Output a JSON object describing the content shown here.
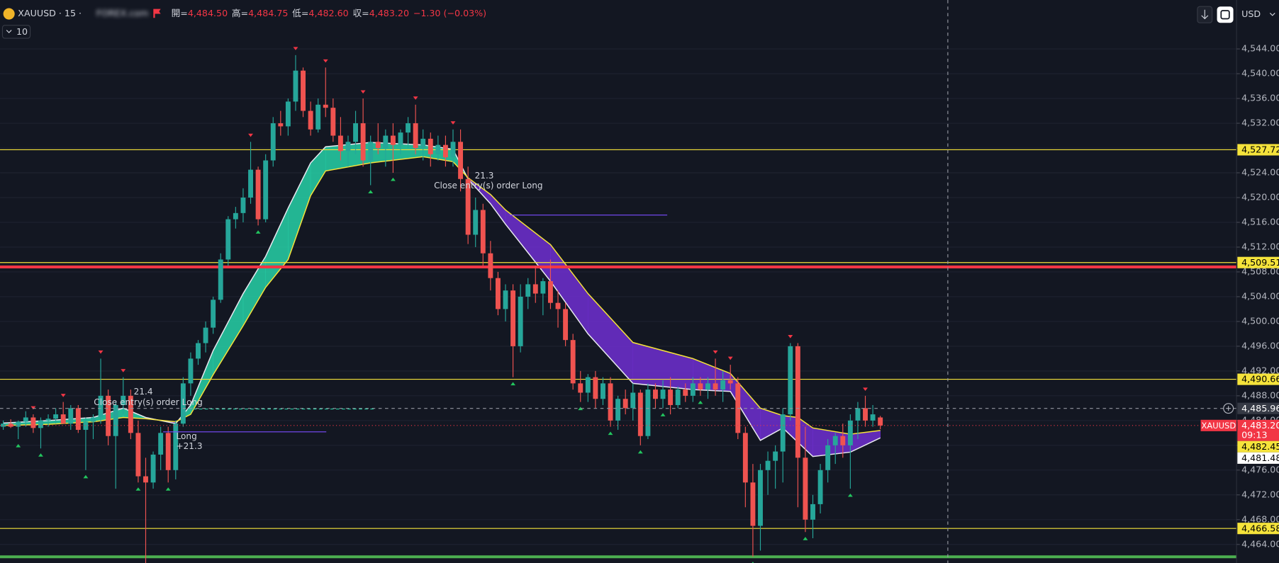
{
  "header": {
    "symbol": "XAUUSD · 15 · ",
    "broker": "FOREX.com",
    "ohlc": [
      {
        "label": "開=",
        "value": "4,484.50"
      },
      {
        "label": "高=",
        "value": "4,484.75"
      },
      {
        "label": "低=",
        "value": "4,482.60"
      },
      {
        "label": "収=",
        "value": "4,483.20"
      }
    ],
    "change": "−1.30 (−0.03%)",
    "interval_badge": "10",
    "currency": "USD"
  },
  "chart_data": {
    "type": "candlestick",
    "up_color": "#26a69a",
    "down_color": "#ef5350",
    "candles": [
      [
        4483.0,
        4484.0,
        4482.5,
        4483.5
      ],
      [
        4483.5,
        4484.2,
        4482.8,
        4483.0
      ],
      [
        4483.0,
        4484.0,
        4481.0,
        4483.8
      ],
      [
        4483.8,
        4485.5,
        4483.0,
        4484.5
      ],
      [
        4484.5,
        4485.0,
        4482.0,
        4482.8
      ],
      [
        4482.8,
        4484.5,
        4479.5,
        4484.0
      ],
      [
        4484.0,
        4485.0,
        4483.0,
        4484.3
      ],
      [
        4484.3,
        4486.0,
        4483.5,
        4485.0
      ],
      [
        4485.0,
        4487.0,
        4484.0,
        4483.5
      ],
      [
        4483.5,
        4486.5,
        4482.5,
        4486.0
      ],
      [
        4486.0,
        4486.5,
        4482.0,
        4482.5
      ],
      [
        4482.5,
        4484.5,
        4476.0,
        4483.8
      ],
      [
        4483.8,
        4485.0,
        4481.0,
        4484.5
      ],
      [
        4484.5,
        4494.0,
        4483.5,
        4488.0
      ],
      [
        4488.0,
        4489.0,
        4480.0,
        4481.5
      ],
      [
        4481.5,
        4487.0,
        4473.0,
        4486.5
      ],
      [
        4486.5,
        4491.0,
        4485.0,
        4488.0
      ],
      [
        4488.0,
        4489.0,
        4481.0,
        4482.0
      ],
      [
        4482.0,
        4484.0,
        4474.0,
        4475.0
      ],
      [
        4475.0,
        4478.0,
        4461.0,
        4474.0
      ],
      [
        4474.0,
        4479.0,
        4473.0,
        4478.5
      ],
      [
        4478.5,
        4483.0,
        4476.0,
        4482.0
      ],
      [
        4482.0,
        4483.0,
        4474.0,
        4476.0
      ],
      [
        4476.0,
        4484.0,
        4474.5,
        4483.5
      ],
      [
        4483.5,
        4491.0,
        4483.0,
        4490.0
      ],
      [
        4490.0,
        4495.0,
        4488.0,
        4494.0
      ],
      [
        4494.0,
        4497.0,
        4493.0,
        4496.5
      ],
      [
        4496.5,
        4500.0,
        4495.0,
        4499.0
      ],
      [
        4499.0,
        4504.0,
        4498.0,
        4503.5
      ],
      [
        4503.5,
        4511.0,
        4503.0,
        4510.0
      ],
      [
        4510.0,
        4517.0,
        4509.0,
        4516.5
      ],
      [
        4516.5,
        4518.5,
        4515.0,
        4517.5
      ],
      [
        4517.5,
        4521.5,
        4516.0,
        4520.0
      ],
      [
        4520.0,
        4529.0,
        4519.0,
        4524.5
      ],
      [
        4524.5,
        4525.0,
        4515.5,
        4516.5
      ],
      [
        4516.5,
        4527.0,
        4516.0,
        4526.0
      ],
      [
        4526.0,
        4533.0,
        4525.0,
        4532.0
      ],
      [
        4532.0,
        4534.0,
        4530.0,
        4531.5
      ],
      [
        4531.5,
        4536.0,
        4530.0,
        4535.5
      ],
      [
        4535.5,
        4543.0,
        4534.0,
        4540.5
      ],
      [
        4540.5,
        4541.0,
        4533.0,
        4534.0
      ],
      [
        4534.0,
        4535.5,
        4530.0,
        4531.0
      ],
      [
        4531.0,
        4536.0,
        4530.5,
        4535.0
      ],
      [
        4535.0,
        4541.0,
        4533.0,
        4534.5
      ],
      [
        4534.5,
        4536.0,
        4529.0,
        4530.0
      ],
      [
        4530.0,
        4533.0,
        4526.0,
        4527.5
      ],
      [
        4527.5,
        4530.0,
        4525.0,
        4529.0
      ],
      [
        4529.0,
        4534.0,
        4527.0,
        4532.0
      ],
      [
        4532.0,
        4536.0,
        4525.0,
        4526.0
      ],
      [
        4526.0,
        4530.0,
        4522.0,
        4529.0
      ],
      [
        4529.0,
        4532.0,
        4527.0,
        4528.0
      ],
      [
        4528.0,
        4531.0,
        4525.0,
        4530.0
      ],
      [
        4530.0,
        4532.0,
        4524.0,
        4528.5
      ],
      [
        4528.5,
        4531.0,
        4527.0,
        4530.5
      ],
      [
        4530.5,
        4533.0,
        4528.0,
        4532.0
      ],
      [
        4532.0,
        4535.0,
        4527.0,
        4528.0
      ],
      [
        4528.0,
        4531.0,
        4526.0,
        4529.5
      ],
      [
        4529.5,
        4530.5,
        4525.0,
        4527.0
      ],
      [
        4527.0,
        4530.0,
        4526.0,
        4528.5
      ],
      [
        4528.5,
        4530.0,
        4525.0,
        4526.5
      ],
      [
        4526.5,
        4531.0,
        4525.0,
        4529.0
      ],
      [
        4529.0,
        4531.0,
        4521.0,
        4523.0
      ],
      [
        4523.0,
        4525.0,
        4512.5,
        4514.0
      ],
      [
        4514.0,
        4520.0,
        4512.0,
        4518.0
      ],
      [
        4518.0,
        4519.0,
        4509.0,
        4511.0
      ],
      [
        4511.0,
        4513.0,
        4505.0,
        4507.0
      ],
      [
        4507.0,
        4508.0,
        4501.0,
        4502.0
      ],
      [
        4502.0,
        4506.0,
        4500.0,
        4505.0
      ],
      [
        4505.0,
        4506.0,
        4491.0,
        4496.0
      ],
      [
        4496.0,
        4506.0,
        4495.0,
        4504.0
      ],
      [
        4504.0,
        4507.0,
        4502.0,
        4506.0
      ],
      [
        4506.0,
        4509.0,
        4503.0,
        4504.5
      ],
      [
        4504.5,
        4507.0,
        4501.0,
        4506.5
      ],
      [
        4506.5,
        4510.0,
        4502.0,
        4503.0
      ],
      [
        4503.0,
        4505.0,
        4499.0,
        4502.0
      ],
      [
        4502.0,
        4503.0,
        4496.0,
        4497.0
      ],
      [
        4497.0,
        4498.0,
        4489.0,
        4490.0
      ],
      [
        4490.0,
        4492.0,
        4487.0,
        4488.5
      ],
      [
        4488.5,
        4491.5,
        4487.0,
        4491.0
      ],
      [
        4491.0,
        4492.0,
        4486.0,
        4487.5
      ],
      [
        4487.5,
        4491.0,
        4486.5,
        4490.0
      ],
      [
        4490.0,
        4491.0,
        4483.0,
        4484.0
      ],
      [
        4484.0,
        4488.0,
        4482.5,
        4487.5
      ],
      [
        4487.5,
        4489.0,
        4485.0,
        4486.0
      ],
      [
        4486.0,
        4490.0,
        4484.0,
        4488.5
      ],
      [
        4488.5,
        4489.0,
        4480.0,
        4481.5
      ],
      [
        4481.5,
        4490.0,
        4481.0,
        4489.0
      ],
      [
        4489.0,
        4490.0,
        4486.0,
        4487.5
      ],
      [
        4487.5,
        4490.5,
        4486.0,
        4489.0
      ],
      [
        4489.0,
        4491.0,
        4485.0,
        4486.5
      ],
      [
        4486.5,
        4489.5,
        4486.0,
        4489.0
      ],
      [
        4489.0,
        4490.0,
        4487.0,
        4488.0
      ],
      [
        4488.0,
        4491.0,
        4487.0,
        4490.0
      ],
      [
        4490.0,
        4491.0,
        4488.0,
        4489.0
      ],
      [
        4489.0,
        4491.0,
        4487.5,
        4490.0
      ],
      [
        4490.0,
        4494.0,
        4488.0,
        4489.0
      ],
      [
        4489.0,
        4492.0,
        4487.0,
        4490.5
      ],
      [
        4490.5,
        4493.0,
        4489.0,
        4490.0
      ],
      [
        4490.0,
        4491.0,
        4481.0,
        4482.0
      ],
      [
        4482.0,
        4483.0,
        4470.0,
        4474.0
      ],
      [
        4474.0,
        4477.0,
        4462.0,
        4467.0
      ],
      [
        4467.0,
        4477.0,
        4463.0,
        4476.0
      ],
      [
        4476.0,
        4479.0,
        4472.0,
        4477.5
      ],
      [
        4477.5,
        4480.0,
        4473.0,
        4479.0
      ],
      [
        4479.0,
        4486.0,
        4474.0,
        4485.0
      ],
      [
        4485.0,
        4496.5,
        4484.0,
        4496.0
      ],
      [
        4496.0,
        4496.5,
        4470.0,
        4478.0
      ],
      [
        4478.0,
        4483.0,
        4466.0,
        4468.0
      ],
      [
        4468.0,
        4472.0,
        4465.0,
        4470.5
      ],
      [
        4470.5,
        4477.0,
        4469.0,
        4476.0
      ],
      [
        4476.0,
        4481.0,
        4474.0,
        4480.0
      ],
      [
        4480.0,
        4482.0,
        4477.0,
        4481.5
      ],
      [
        4481.5,
        4483.5,
        4478.0,
        4480.0
      ],
      [
        4480.0,
        4485.0,
        4473.0,
        4484.0
      ],
      [
        4484.0,
        4487.0,
        4481.0,
        4486.0
      ],
      [
        4486.0,
        4488.0,
        4483.0,
        4484.0
      ],
      [
        4484.0,
        4486.5,
        4483.0,
        4485.0
      ],
      [
        4484.5,
        4484.75,
        4482.6,
        4483.2
      ]
    ],
    "ylim": [
      4461.0,
      4551.9
    ],
    "yticks": [
      {
        "value": 4544,
        "label": "4,544.00"
      },
      {
        "value": 4540,
        "label": "4,540.00"
      },
      {
        "value": 4536,
        "label": "4,536.00"
      },
      {
        "value": 4532,
        "label": "4,532.00"
      },
      {
        "value": 4528,
        "label": "4,528.00"
      },
      {
        "value": 4524,
        "label": "4,524.00"
      },
      {
        "value": 4520,
        "label": "4,520.00"
      },
      {
        "value": 4516,
        "label": "4,516.00"
      },
      {
        "value": 4512,
        "label": "4,512.00"
      },
      {
        "value": 4508,
        "label": "4,508.00"
      },
      {
        "value": 4504,
        "label": "4,504.00"
      },
      {
        "value": 4500,
        "label": "4,500.00"
      },
      {
        "value": 4496,
        "label": "4,496.00"
      },
      {
        "value": 4492,
        "label": "4,492.00"
      },
      {
        "value": 4488,
        "label": "4,488.00"
      },
      {
        "value": 4484,
        "label": "4,484.00"
      },
      {
        "value": 4480,
        "label": "4,480.00"
      },
      {
        "value": 4476,
        "label": "4,476.00"
      },
      {
        "value": 4472,
        "label": "4,472.00"
      },
      {
        "value": 4468,
        "label": "4,468.00"
      },
      {
        "value": 4464,
        "label": "4,464.00"
      }
    ],
    "grid": true,
    "ribbon": {
      "x": [
        0,
        6,
        12,
        16,
        19,
        23,
        25,
        28,
        32,
        35,
        38,
        41,
        43,
        49,
        56,
        60,
        62,
        65,
        67,
        73,
        78,
        84,
        92,
        97,
        101,
        104,
        106,
        108,
        113,
        117
      ],
      "fast": [
        4483.6,
        4484.0,
        4484.5,
        4486.0,
        4484.5,
        4483.5,
        4486.5,
        4495.3,
        4504.5,
        4510.5,
        4518.3,
        4525.6,
        4528.2,
        4528.9,
        4528.5,
        4527.8,
        4523.0,
        4519.0,
        4515.7,
        4506.5,
        4498.0,
        4490.0,
        4489.0,
        4488.7,
        4480.8,
        4482.8,
        4480.5,
        4478.2,
        4478.9,
        4481.2
      ],
      "slow": [
        4483.2,
        4483.4,
        4483.8,
        4484.5,
        4484.3,
        4483.8,
        4485.0,
        4491.4,
        4499.3,
        4505.5,
        4510.0,
        4520.3,
        4524.3,
        4525.6,
        4526.6,
        4525.8,
        4523.2,
        4520.5,
        4518.0,
        4512.4,
        4504.5,
        4496.6,
        4494.0,
        4491.6,
        4486.0,
        4484.8,
        4484.5,
        4482.8,
        4481.8,
        4482.4
      ],
      "up_color": "#26c6a0",
      "down_color": "#6a2ec8",
      "fast_color": "#e8e8f0",
      "slow_color": "#f5e23a"
    },
    "levels": [
      {
        "value": 4527.72,
        "label": "4,527.72"
      },
      {
        "value": 4509.51,
        "label": "4,509.51"
      },
      {
        "value": 4490.66,
        "label": "4,490.66"
      },
      {
        "value": 4466.58,
        "label": "4,466.58"
      }
    ],
    "level_color": "#f5e33b",
    "thick_lines": [
      {
        "value": 4508.8,
        "color": "#f23645"
      },
      {
        "value": 4462.0,
        "color": "#4caf50"
      }
    ],
    "crosshair": {
      "value": 4485.96,
      "label": "4,485.96"
    },
    "last_price": {
      "value": 4483.2,
      "label": "4,483.20",
      "symbol": "XAUUSD",
      "countdown": "09:13"
    },
    "extra_labels": [
      {
        "value": 4482.45,
        "label": "4,482.45",
        "color": "#f5e33b"
      },
      {
        "value": 4481.48,
        "label": "4,481.48",
        "color": "#ffffff"
      }
    ],
    "markers": {
      "sell": [
        4,
        8,
        13,
        16,
        33,
        39,
        43,
        48,
        55,
        60,
        95,
        97,
        105,
        115
      ],
      "buy": [
        2,
        5,
        11,
        18,
        22,
        34,
        49,
        52,
        68,
        77,
        81,
        85,
        88,
        93,
        100,
        107,
        113
      ]
    },
    "annotations": [
      "21.4",
      "Close entry(s) order Long",
      "Long",
      "+21.3",
      "21.3",
      "Close entry(s) order Long"
    ]
  }
}
